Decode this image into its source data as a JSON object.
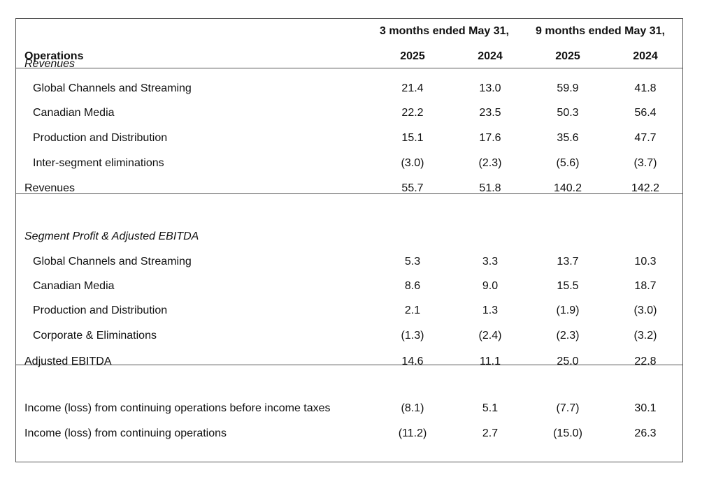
{
  "header": {
    "group_labels": [
      "3 months ended May 31,",
      "9 months ended May 31,"
    ],
    "row_label": "Operations",
    "years": [
      "2025",
      "2024",
      "2025",
      "2024"
    ]
  },
  "rows": [
    {
      "label": "Revenues",
      "style": "section",
      "values": []
    },
    {
      "label": "Global Channels and Streaming",
      "style": "indent",
      "values": [
        "21.4",
        "13.0",
        "59.9",
        "41.8"
      ]
    },
    {
      "label": "Canadian Media",
      "style": "indent",
      "values": [
        "22.2",
        "23.5",
        "50.3",
        "56.4"
      ]
    },
    {
      "label": "Production and Distribution",
      "style": "indent",
      "values": [
        "15.1",
        "17.6",
        "35.6",
        "47.7"
      ]
    },
    {
      "label": "Inter-segment eliminations",
      "style": "indent",
      "values": [
        "(3.0)",
        "(2.3)",
        "(5.6)",
        "(3.7)"
      ]
    },
    {
      "label": "Revenues",
      "style": "total",
      "values": [
        "55.7",
        "51.8",
        "140.2",
        "142.2"
      ]
    },
    {
      "label": "Segment Profit & Adjusted EBITDA",
      "style": "section",
      "values": []
    },
    {
      "label": "Global Channels and Streaming",
      "style": "indent",
      "values": [
        "5.3",
        "3.3",
        "13.7",
        "10.3"
      ]
    },
    {
      "label": "Canadian Media",
      "style": "indent",
      "values": [
        "8.6",
        "9.0",
        "15.5",
        "18.7"
      ]
    },
    {
      "label": "Production and Distribution",
      "style": "indent",
      "values": [
        "2.1",
        "1.3",
        "(1.9)",
        "(3.0)"
      ]
    },
    {
      "label": "Corporate & Eliminations",
      "style": "indent",
      "values": [
        "(1.3)",
        "(2.4)",
        "(2.3)",
        "(3.2)"
      ]
    },
    {
      "label": "Adjusted EBITDA",
      "style": "total",
      "values": [
        "14.6",
        "11.1",
        "25.0",
        "22.8"
      ]
    },
    {
      "label": "Income (loss) from continuing operations before income taxes",
      "style": "total",
      "values": [
        "(8.1)",
        "5.1",
        "(7.7)",
        "30.1"
      ]
    },
    {
      "label": "Income (loss) from continuing operations",
      "style": "total",
      "values": [
        "(11.2)",
        "2.7",
        "(15.0)",
        "26.3"
      ]
    }
  ]
}
